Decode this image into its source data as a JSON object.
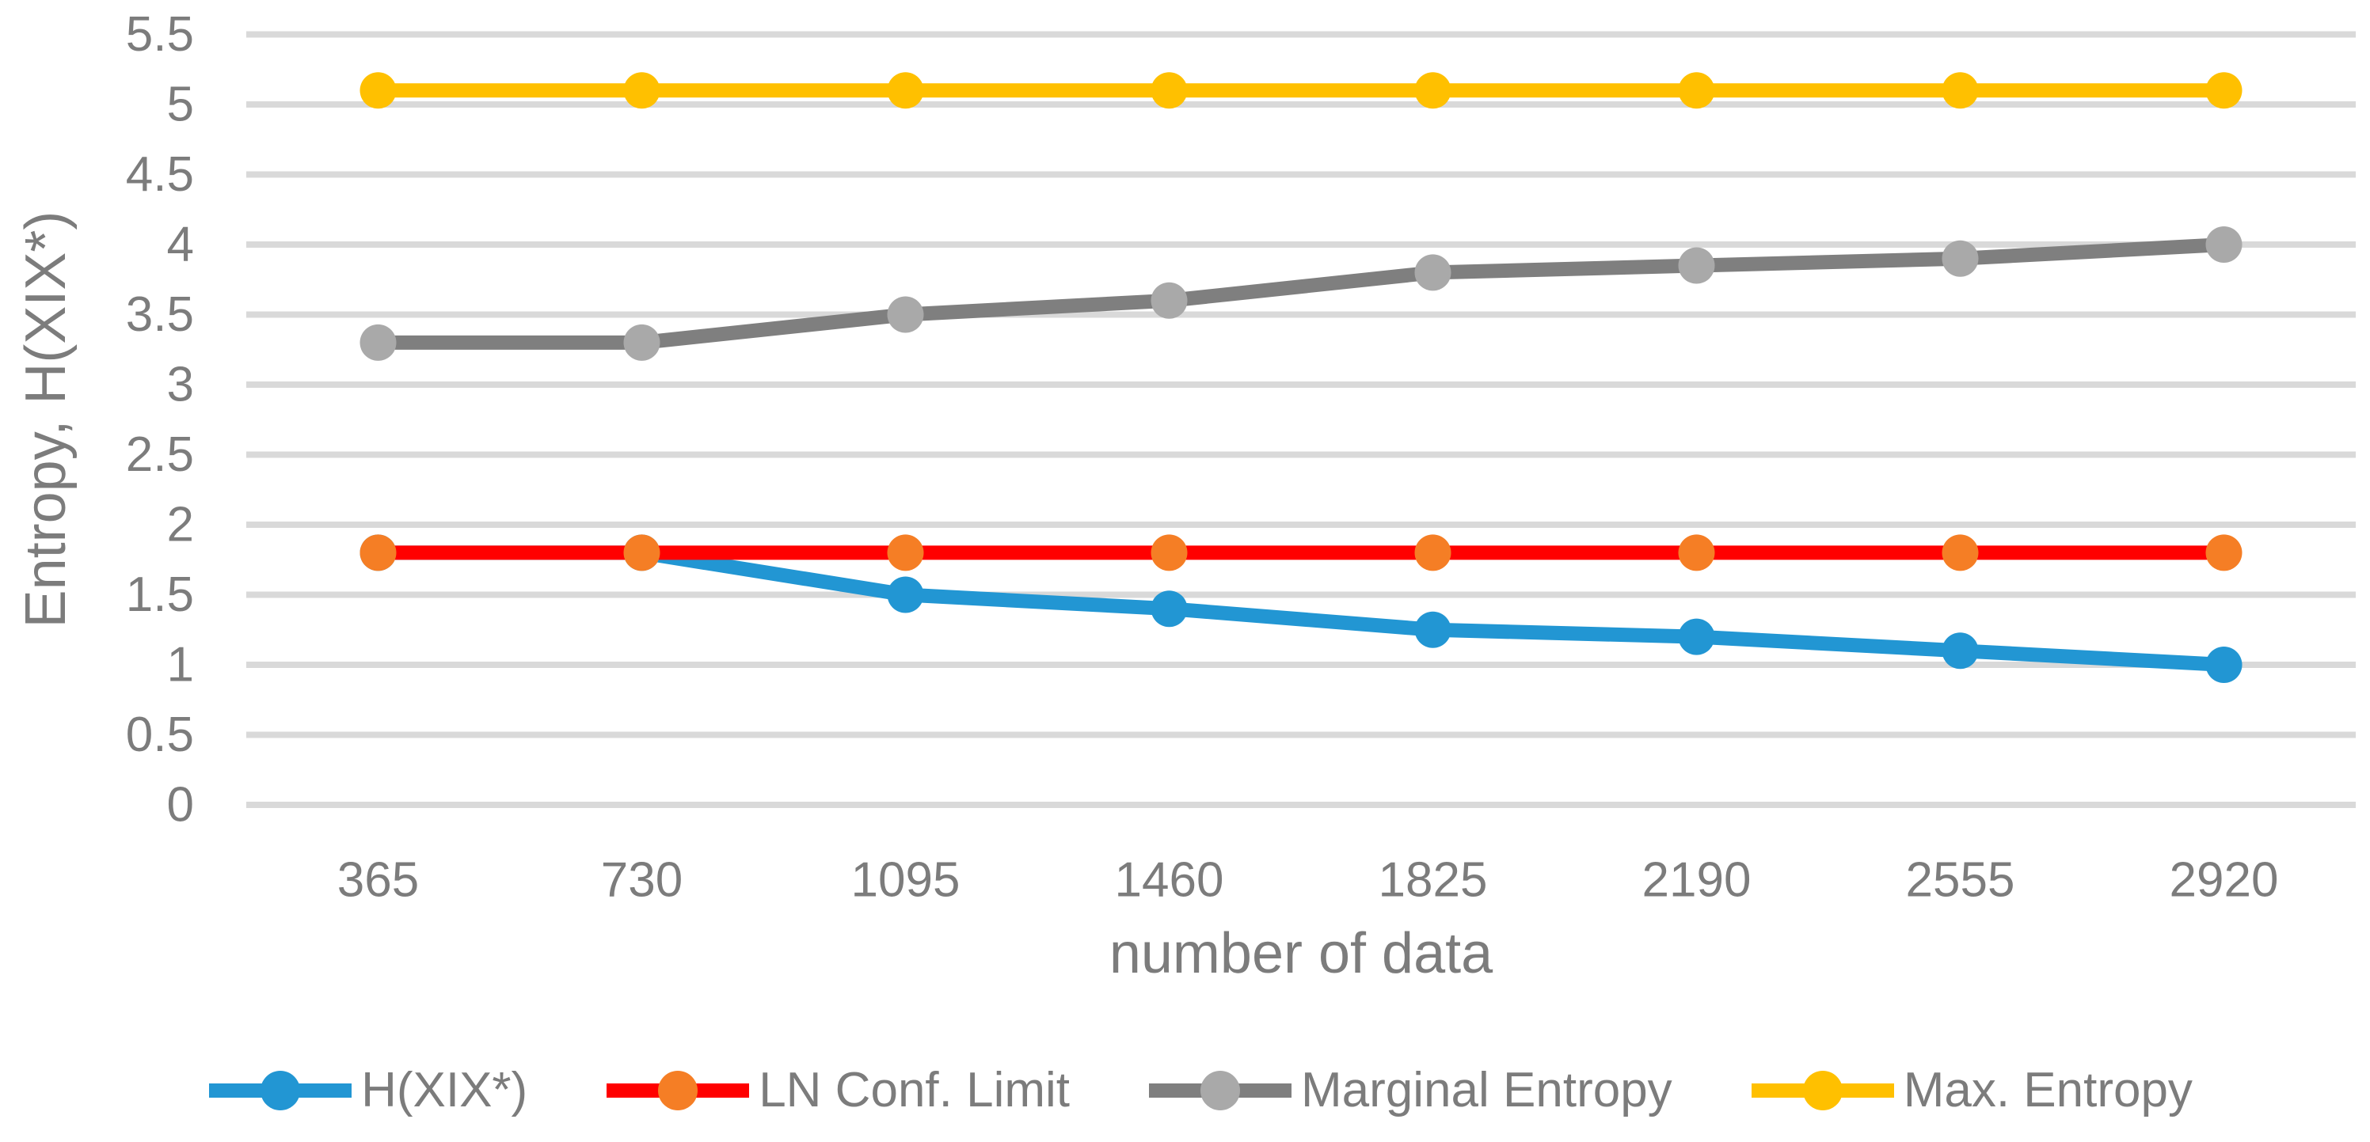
{
  "chart_data": {
    "type": "line",
    "x": [
      365,
      730,
      1095,
      1460,
      1825,
      2190,
      2555,
      2920
    ],
    "xlabel": "number of data",
    "ylabel": "Entropy, H(XIX*)",
    "ylim": [
      0,
      5.5
    ],
    "ytick_step": 0.5,
    "grid": true,
    "legend_position": "bottom",
    "series": [
      {
        "name": "H(XIX*)",
        "line_color": "#2296D3",
        "marker_color": "#2296D3",
        "values": [
          1.8,
          1.8,
          1.5,
          1.4,
          1.25,
          1.2,
          1.1,
          1.0
        ]
      },
      {
        "name": "LN Conf. Limit",
        "line_color": "#FF0000",
        "marker_color": "#F57E25",
        "values": [
          1.8,
          1.8,
          1.8,
          1.8,
          1.8,
          1.8,
          1.8,
          1.8
        ]
      },
      {
        "name": "Marginal Entropy",
        "line_color": "#7F7F7F",
        "marker_color": "#A9A9A9",
        "values": [
          3.3,
          3.3,
          3.5,
          3.6,
          3.8,
          3.85,
          3.9,
          4.0
        ]
      },
      {
        "name": "Max. Entropy",
        "line_color": "#FFC000",
        "marker_color": "#FFC000",
        "values": [
          5.1,
          5.1,
          5.1,
          5.1,
          5.1,
          5.1,
          5.1,
          5.1
        ]
      }
    ],
    "colors": {
      "gridline": "#D9D9D9",
      "axis_text": "#7C7C7C",
      "background": "#FFFFFF"
    }
  }
}
